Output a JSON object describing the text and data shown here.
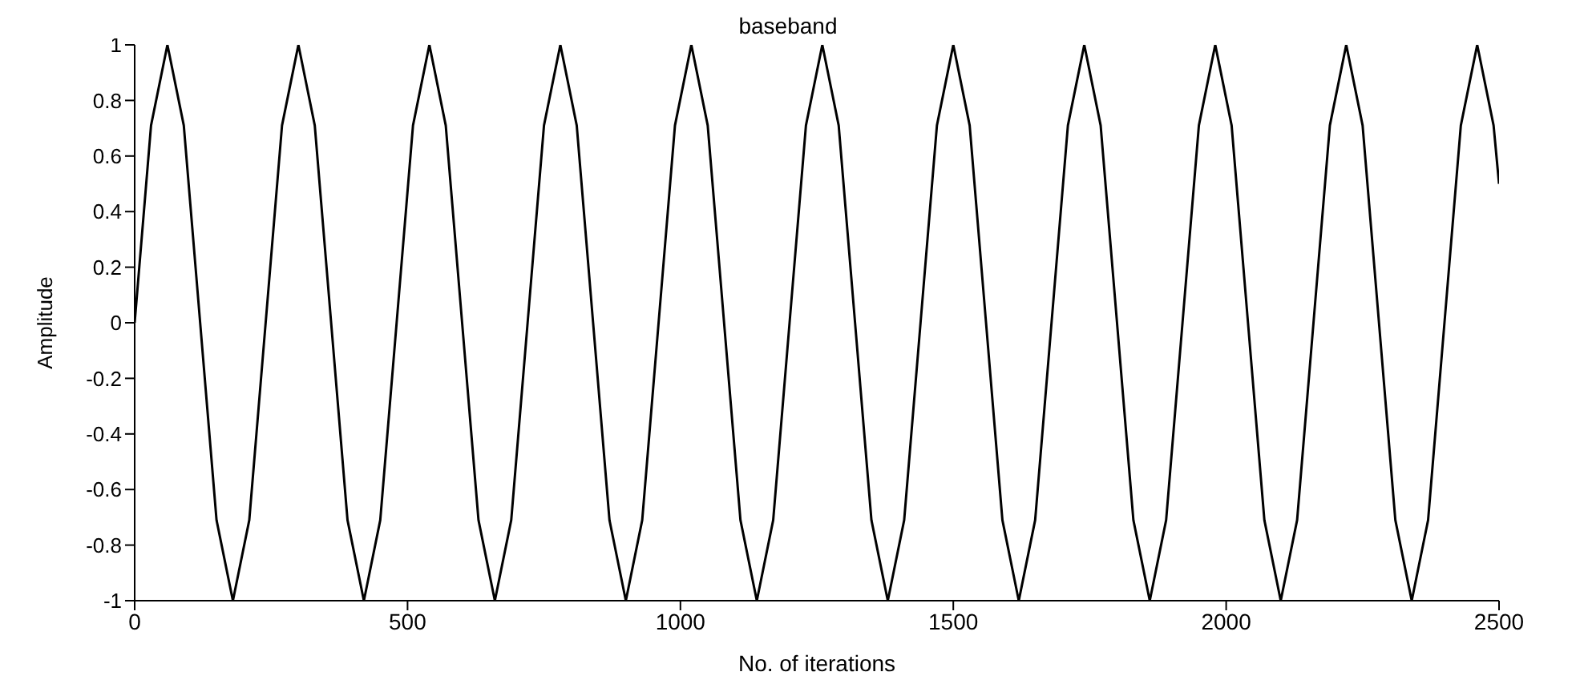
{
  "chart_data": {
    "type": "line",
    "title": "baseband",
    "xlabel": "No. of iterations",
    "ylabel": "Amplitude",
    "x": [
      0,
      30,
      60,
      90,
      120,
      150,
      180,
      210,
      240,
      270,
      300,
      330,
      360,
      390,
      420,
      450,
      480,
      510,
      540,
      570,
      600,
      630,
      660,
      690,
      720,
      750,
      780,
      810,
      840,
      870,
      900,
      930,
      960,
      990,
      1020,
      1050,
      1080,
      1110,
      1140,
      1170,
      1200,
      1230,
      1260,
      1290,
      1320,
      1350,
      1380,
      1410,
      1440,
      1470,
      1500,
      1530,
      1560,
      1590,
      1620,
      1650,
      1680,
      1710,
      1740,
      1770,
      1800,
      1830,
      1860,
      1890,
      1920,
      1950,
      1980,
      2010,
      2040,
      2070,
      2100,
      2130,
      2160,
      2190,
      2220,
      2250,
      2280,
      2310,
      2340,
      2370,
      2400,
      2430,
      2460,
      2490,
      2500
    ],
    "series": [
      {
        "color": "#000000",
        "values": [
          0,
          0.71,
          1,
          0.71,
          0,
          -0.71,
          -1,
          -0.71,
          0,
          0.71,
          1,
          0.71,
          0,
          -0.71,
          -1,
          -0.71,
          0,
          0.71,
          1,
          0.71,
          0,
          -0.71,
          -1,
          -0.71,
          0,
          0.71,
          1,
          0.71,
          0,
          -0.71,
          -1,
          -0.71,
          0,
          0.71,
          1,
          0.71,
          0,
          -0.71,
          -1,
          -0.71,
          0,
          0.71,
          1,
          0.71,
          0,
          -0.71,
          -1,
          -0.71,
          0,
          0.71,
          1,
          0.71,
          0,
          -0.71,
          -1,
          -0.71,
          0,
          0.71,
          1,
          0.71,
          0,
          -0.71,
          -1,
          -0.71,
          0,
          0.71,
          1,
          0.71,
          0,
          -0.71,
          -1,
          -0.71,
          0,
          0.71,
          1,
          0.71,
          0,
          -0.71,
          -1,
          -0.71,
          0,
          0.71,
          1,
          0.71,
          0.5
        ]
      }
    ],
    "xlim": [
      0,
      2500
    ],
    "xticks": [
      0,
      500,
      1000,
      1500,
      2000,
      2500
    ],
    "ylim": [
      -1,
      1
    ],
    "yticks": [
      -1,
      -0.8,
      -0.6,
      -0.4,
      -0.2,
      0,
      0.2,
      0.4,
      0.6,
      0.8,
      1
    ],
    "grid": false,
    "legend": false,
    "marker": "none",
    "line_style": "solid"
  }
}
